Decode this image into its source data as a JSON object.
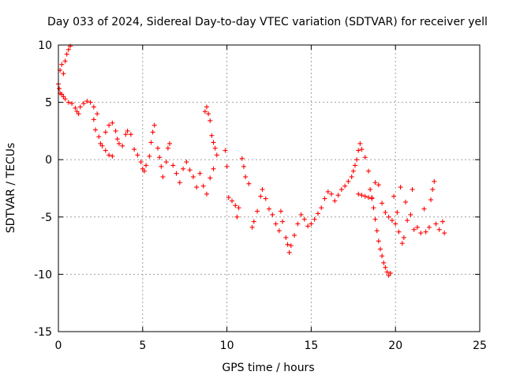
{
  "chart_data": {
    "type": "scatter",
    "title": "Day 033 of 2024, Sidereal Day-to-day VTEC variation (SDTVAR) for receiver yell",
    "xlabel": "GPS time / hours",
    "ylabel": "SDTVAR / TECUs",
    "xlim": [
      0,
      25
    ],
    "ylim": [
      -15,
      10
    ],
    "xticks": [
      0,
      5,
      10,
      15,
      20,
      25
    ],
    "yticks": [
      -15,
      -10,
      -5,
      0,
      5,
      10
    ],
    "grid": true,
    "marker": "+",
    "series_color": "#ff0000",
    "series": [
      {
        "name": "SDTVAR",
        "points": [
          [
            0.0,
            6.6
          ],
          [
            0.1,
            7.8
          ],
          [
            0.2,
            8.3
          ],
          [
            0.3,
            7.5
          ],
          [
            0.4,
            8.6
          ],
          [
            0.5,
            9.2
          ],
          [
            0.6,
            9.6
          ],
          [
            0.7,
            9.9
          ],
          [
            0.05,
            6.2
          ],
          [
            0.1,
            5.8
          ],
          [
            0.2,
            5.7
          ],
          [
            0.3,
            5.5
          ],
          [
            0.4,
            5.3
          ],
          [
            0.6,
            5.0
          ],
          [
            0.8,
            4.9
          ],
          [
            1.0,
            4.5
          ],
          [
            1.1,
            4.2
          ],
          [
            1.2,
            4.0
          ],
          [
            1.3,
            4.6
          ],
          [
            1.5,
            4.9
          ],
          [
            1.7,
            5.1
          ],
          [
            1.9,
            5.0
          ],
          [
            2.1,
            4.6
          ],
          [
            2.3,
            4.0
          ],
          [
            2.1,
            3.5
          ],
          [
            2.2,
            2.6
          ],
          [
            2.4,
            2.0
          ],
          [
            2.5,
            1.4
          ],
          [
            2.6,
            1.2
          ],
          [
            2.8,
            0.8
          ],
          [
            3.0,
            0.4
          ],
          [
            3.2,
            0.3
          ],
          [
            2.8,
            2.4
          ],
          [
            3.0,
            3.0
          ],
          [
            3.2,
            3.2
          ],
          [
            3.4,
            2.5
          ],
          [
            3.5,
            1.8
          ],
          [
            3.6,
            1.4
          ],
          [
            3.8,
            1.2
          ],
          [
            4.0,
            2.2
          ],
          [
            4.1,
            2.5
          ],
          [
            4.3,
            2.2
          ],
          [
            4.5,
            0.9
          ],
          [
            4.7,
            0.4
          ],
          [
            4.9,
            -0.2
          ],
          [
            5.0,
            -0.8
          ],
          [
            5.1,
            -1.0
          ],
          [
            5.2,
            -0.5
          ],
          [
            5.4,
            0.3
          ],
          [
            5.5,
            1.5
          ],
          [
            5.6,
            2.4
          ],
          [
            5.7,
            3.0
          ],
          [
            5.9,
            1.0
          ],
          [
            6.0,
            0.2
          ],
          [
            6.1,
            -0.6
          ],
          [
            6.2,
            -1.5
          ],
          [
            6.4,
            -0.2
          ],
          [
            6.5,
            1.0
          ],
          [
            6.6,
            1.4
          ],
          [
            6.8,
            -0.5
          ],
          [
            7.0,
            -1.2
          ],
          [
            7.2,
            -2.0
          ],
          [
            7.4,
            -0.8
          ],
          [
            7.6,
            -0.2
          ],
          [
            7.8,
            -0.9
          ],
          [
            8.0,
            -1.5
          ],
          [
            8.2,
            -2.4
          ],
          [
            8.4,
            -1.2
          ],
          [
            8.6,
            -2.3
          ],
          [
            8.8,
            -3.0
          ],
          [
            9.0,
            -1.6
          ],
          [
            9.2,
            -0.8
          ],
          [
            8.7,
            4.2
          ],
          [
            8.8,
            4.6
          ],
          [
            8.9,
            4.0
          ],
          [
            9.0,
            3.4
          ],
          [
            9.1,
            2.1
          ],
          [
            9.2,
            1.5
          ],
          [
            9.3,
            1.0
          ],
          [
            9.4,
            0.4
          ],
          [
            9.9,
            0.8
          ],
          [
            10.0,
            -0.6
          ],
          [
            10.1,
            -3.3
          ],
          [
            10.3,
            -3.6
          ],
          [
            10.5,
            -4.0
          ],
          [
            10.6,
            -5.0
          ],
          [
            10.7,
            -4.2
          ],
          [
            10.9,
            0.1
          ],
          [
            11.0,
            -0.6
          ],
          [
            11.1,
            -1.5
          ],
          [
            11.3,
            -2.1
          ],
          [
            11.5,
            -5.9
          ],
          [
            11.6,
            -5.4
          ],
          [
            11.8,
            -4.5
          ],
          [
            12.0,
            -3.2
          ],
          [
            12.1,
            -2.6
          ],
          [
            12.3,
            -3.4
          ],
          [
            12.5,
            -4.3
          ],
          [
            12.7,
            -4.8
          ],
          [
            12.9,
            -5.6
          ],
          [
            13.1,
            -6.2
          ],
          [
            13.2,
            -4.5
          ],
          [
            13.3,
            -5.4
          ],
          [
            13.5,
            -6.8
          ],
          [
            13.6,
            -7.4
          ],
          [
            13.7,
            -8.1
          ],
          [
            13.8,
            -7.5
          ],
          [
            14.0,
            -6.6
          ],
          [
            14.2,
            -5.6
          ],
          [
            14.4,
            -4.8
          ],
          [
            14.6,
            -5.2
          ],
          [
            14.8,
            -5.8
          ],
          [
            15.0,
            -5.6
          ],
          [
            15.2,
            -5.2
          ],
          [
            15.4,
            -4.7
          ],
          [
            15.6,
            -4.2
          ],
          [
            15.8,
            -3.4
          ],
          [
            16.0,
            -2.8
          ],
          [
            16.2,
            -3.0
          ],
          [
            16.4,
            -3.6
          ],
          [
            16.6,
            -3.1
          ],
          [
            16.8,
            -2.6
          ],
          [
            17.0,
            -2.3
          ],
          [
            17.2,
            -1.9
          ],
          [
            17.4,
            -1.5
          ],
          [
            17.5,
            -1.0
          ],
          [
            17.6,
            -0.5
          ],
          [
            17.7,
            0.0
          ],
          [
            17.8,
            0.8
          ],
          [
            17.9,
            1.4
          ],
          [
            18.0,
            0.9
          ],
          [
            18.2,
            0.2
          ],
          [
            18.4,
            -1.0
          ],
          [
            18.5,
            -2.6
          ],
          [
            18.6,
            -3.4
          ],
          [
            18.7,
            -4.2
          ],
          [
            18.8,
            -5.2
          ],
          [
            18.9,
            -6.2
          ],
          [
            19.0,
            -7.1
          ],
          [
            19.1,
            -7.8
          ],
          [
            19.2,
            -8.4
          ],
          [
            19.3,
            -9.0
          ],
          [
            19.4,
            -9.4
          ],
          [
            19.5,
            -9.8
          ],
          [
            19.6,
            -10.1
          ],
          [
            19.7,
            -9.9
          ],
          [
            17.8,
            -3.0
          ],
          [
            18.0,
            -3.1
          ],
          [
            18.2,
            -3.2
          ],
          [
            18.4,
            -3.3
          ],
          [
            18.6,
            -3.3
          ],
          [
            18.8,
            -2.0
          ],
          [
            19.0,
            -2.2
          ],
          [
            19.2,
            -3.8
          ],
          [
            19.4,
            -4.6
          ],
          [
            19.6,
            -5.0
          ],
          [
            19.8,
            -5.3
          ],
          [
            20.0,
            -5.6
          ],
          [
            20.2,
            -6.3
          ],
          [
            20.4,
            -7.3
          ],
          [
            20.5,
            -6.8
          ],
          [
            20.7,
            -5.3
          ],
          [
            20.9,
            -4.8
          ],
          [
            21.1,
            -6.1
          ],
          [
            21.3,
            -5.9
          ],
          [
            21.5,
            -6.4
          ],
          [
            21.7,
            -4.3
          ],
          [
            21.8,
            -6.3
          ],
          [
            22.0,
            -5.9
          ],
          [
            22.1,
            -3.5
          ],
          [
            22.2,
            -2.6
          ],
          [
            22.3,
            -1.9
          ],
          [
            22.4,
            -5.6
          ],
          [
            22.6,
            -6.1
          ],
          [
            22.8,
            -5.4
          ],
          [
            22.9,
            -6.4
          ],
          [
            19.9,
            -3.2
          ],
          [
            20.1,
            -4.6
          ],
          [
            20.3,
            -2.4
          ],
          [
            20.6,
            -3.7
          ],
          [
            21.0,
            -2.6
          ]
        ]
      }
    ]
  }
}
